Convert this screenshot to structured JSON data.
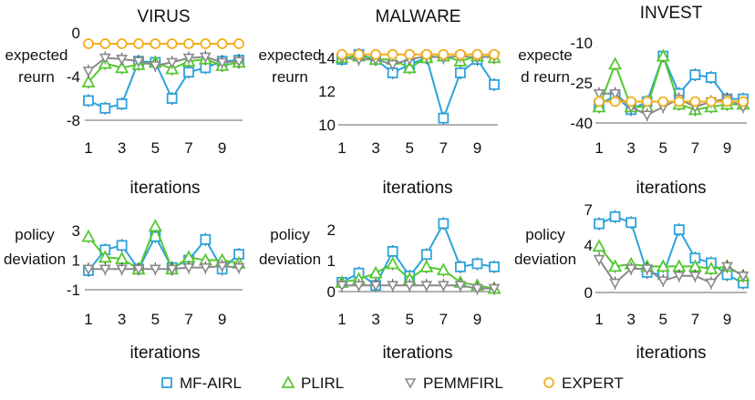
{
  "colors": {
    "MF-AIRL": "#2ba3dc",
    "PLIRL": "#55c832",
    "PEMMFIRL": "#8a8a8a",
    "EXPERT": "#f2ae1c"
  },
  "legend": [
    "MF-AIRL",
    "PLIRL",
    "PEMMFIRL",
    "EXPERT"
  ],
  "chart_data": [
    {
      "id": "virus-return",
      "type": "line",
      "title": "VIRUS",
      "ylabel": [
        "expected",
        "reurn"
      ],
      "xlabel": "iterations",
      "x": [
        1,
        2,
        3,
        4,
        5,
        6,
        7,
        8,
        9,
        10
      ],
      "xticks": [
        1,
        3,
        5,
        7,
        9
      ],
      "ylim": [
        -8,
        0
      ],
      "yticks": [
        "0",
        "-4",
        "-8"
      ],
      "ytick_values": [
        0,
        -4,
        -8
      ],
      "series": [
        {
          "name": "MF-AIRL",
          "values": [
            -6.2,
            -6.9,
            -6.5,
            -2.6,
            -2.7,
            -6.0,
            -3.6,
            -3.2,
            -2.6,
            -2.5
          ]
        },
        {
          "name": "PLIRL",
          "values": [
            -4.5,
            -2.8,
            -3.2,
            -2.9,
            -2.7,
            -3.3,
            -2.6,
            -2.4,
            -3.0,
            -2.7
          ]
        },
        {
          "name": "PEMMFIRL",
          "values": [
            -3.5,
            -2.3,
            -2.4,
            -2.6,
            -3.0,
            -2.7,
            -2.3,
            -2.2,
            -2.7,
            -2.6
          ]
        },
        {
          "name": "EXPERT",
          "values": [
            -1,
            -1,
            -1,
            -1,
            -1,
            -1,
            -1,
            -1,
            -1,
            -1
          ]
        }
      ]
    },
    {
      "id": "malware-return",
      "type": "line",
      "title": "MALWARE",
      "ylabel": [
        "expected",
        "reurn"
      ],
      "xlabel": "iterations",
      "x": [
        1,
        2,
        3,
        4,
        5,
        6,
        7,
        8,
        9,
        10
      ],
      "xticks": [
        1,
        3,
        5,
        7,
        9
      ],
      "ylim": [
        10,
        15
      ],
      "yticks": [
        "14",
        "12",
        "10"
      ],
      "ytick_values": [
        14,
        12,
        10
      ],
      "series": [
        {
          "name": "MF-AIRL",
          "values": [
            13.9,
            14.2,
            13.9,
            13.1,
            13.6,
            14.0,
            10.4,
            13.1,
            13.9,
            12.4
          ]
        },
        {
          "name": "PLIRL",
          "values": [
            14.0,
            14.1,
            13.9,
            13.9,
            13.4,
            14.0,
            14.1,
            13.8,
            14.1,
            14.0
          ]
        },
        {
          "name": "PEMMFIRL",
          "values": [
            14.0,
            13.9,
            13.9,
            13.6,
            13.9,
            14.1,
            14.0,
            14.1,
            14.0,
            14.1
          ]
        },
        {
          "name": "EXPERT",
          "values": [
            14.2,
            14.2,
            14.2,
            14.2,
            14.2,
            14.2,
            14.2,
            14.2,
            14.2,
            14.2
          ]
        }
      ]
    },
    {
      "id": "invest-return",
      "type": "line",
      "title": "INVEST",
      "ylabel": [
        "expecte",
        "d reurn"
      ],
      "xlabel": "iterations",
      "x": [
        1,
        2,
        3,
        4,
        5,
        6,
        7,
        8,
        9,
        10
      ],
      "xticks": [
        1,
        3,
        5,
        7,
        9
      ],
      "ylim": [
        -40,
        -8
      ],
      "yticks": [
        "-10",
        "-25",
        "-40"
      ],
      "ytick_values": [
        -10,
        -25,
        -40
      ],
      "series": [
        {
          "name": "MF-AIRL",
          "values": [
            -33,
            -30,
            -35,
            -32,
            -15,
            -29,
            -22,
            -23,
            -31,
            -31
          ]
        },
        {
          "name": "PLIRL",
          "values": [
            -34,
            -18,
            -34,
            -34,
            -15,
            -33,
            -35,
            -34,
            -33,
            -33
          ]
        },
        {
          "name": "PEMMFIRL",
          "values": [
            -29,
            -29,
            -34,
            -37,
            -34,
            -31,
            -34,
            -32,
            -31,
            -34
          ]
        },
        {
          "name": "EXPERT",
          "values": [
            -32,
            -32,
            -32,
            -32,
            -32,
            -32,
            -32,
            -32,
            -32,
            -32
          ]
        }
      ]
    },
    {
      "id": "virus-deviation",
      "type": "line",
      "title": "",
      "ylabel": [
        "policy",
        "deviation"
      ],
      "xlabel": "iterations",
      "x": [
        1,
        2,
        3,
        4,
        5,
        6,
        7,
        8,
        9,
        10
      ],
      "xticks": [
        1,
        3,
        5,
        7,
        9
      ],
      "ylim": [
        -1,
        3.5
      ],
      "yticks": [
        "3",
        "1",
        "-1"
      ],
      "ytick_values": [
        3,
        1,
        -1
      ],
      "series": [
        {
          "name": "MF-AIRL",
          "values": [
            0.3,
            1.7,
            2.0,
            0.4,
            2.6,
            0.5,
            1.0,
            2.4,
            0.4,
            1.4
          ]
        },
        {
          "name": "PLIRL",
          "values": [
            2.6,
            1.2,
            1.1,
            0.4,
            3.3,
            0.4,
            1.2,
            1.0,
            1.0,
            0.8
          ]
        },
        {
          "name": "PEMMFIRL",
          "values": [
            0.4,
            0.4,
            0.4,
            0.4,
            0.4,
            0.4,
            0.5,
            0.5,
            0.6,
            0.5
          ]
        }
      ]
    },
    {
      "id": "malware-deviation",
      "type": "line",
      "title": "",
      "ylabel": [
        "policy",
        "deviation"
      ],
      "xlabel": "iterations",
      "x": [
        1,
        2,
        3,
        4,
        5,
        6,
        7,
        8,
        9,
        10
      ],
      "xticks": [
        1,
        3,
        5,
        7,
        9
      ],
      "ylim": [
        0,
        2.3
      ],
      "yticks": [
        "2",
        "1",
        "0"
      ],
      "ytick_values": [
        2,
        1,
        0
      ],
      "series": [
        {
          "name": "MF-AIRL",
          "values": [
            0.3,
            0.6,
            0.2,
            1.3,
            0.5,
            1.2,
            2.2,
            0.8,
            0.9,
            0.8
          ]
        },
        {
          "name": "PLIRL",
          "values": [
            0.3,
            0.4,
            0.6,
            0.9,
            0.4,
            0.8,
            0.7,
            0.3,
            0.2,
            0.1
          ]
        },
        {
          "name": "PEMMFIRL",
          "values": [
            0.2,
            0.2,
            0.2,
            0.2,
            0.2,
            0.2,
            0.2,
            0.2,
            0.1,
            0.1
          ]
        }
      ]
    },
    {
      "id": "invest-deviation",
      "type": "line",
      "title": "",
      "ylabel": [
        "policy",
        "deviation"
      ],
      "xlabel": "iterations",
      "x": [
        1,
        2,
        3,
        4,
        5,
        6,
        7,
        8,
        9,
        10
      ],
      "xticks": [
        1,
        3,
        5,
        7,
        9
      ],
      "ylim": [
        0,
        7
      ],
      "yticks": [
        "7",
        "4",
        "0"
      ],
      "ytick_values": [
        7,
        4,
        0
      ],
      "series": [
        {
          "name": "MF-AIRL",
          "values": [
            5.8,
            6.4,
            5.9,
            1.7,
            1.5,
            5.3,
            2.9,
            2.5,
            1.5,
            0.8
          ]
        },
        {
          "name": "PLIRL",
          "values": [
            3.9,
            2.2,
            2.4,
            2.2,
            2.2,
            2.2,
            2.2,
            2.0,
            2.2,
            1.4
          ]
        },
        {
          "name": "PEMMFIRL",
          "values": [
            2.8,
            0.8,
            2.0,
            2.0,
            1.0,
            1.4,
            1.4,
            0.8,
            2.2,
            1.4
          ]
        }
      ]
    }
  ]
}
